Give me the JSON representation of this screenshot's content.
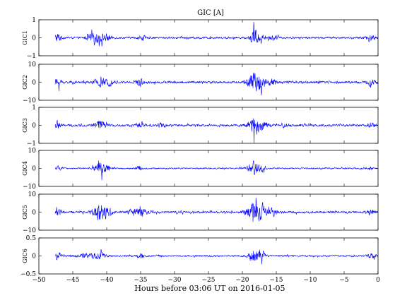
{
  "figure": {
    "title": "GIC [A]",
    "xlabel": "Hours before  03:06 UT on 2016-01-05"
  },
  "chart_data": {
    "type": "line",
    "title": "GIC [A]",
    "xlabel": "Hours before  03:06 UT on 2016-01-05",
    "xlim": [
      -50,
      0
    ],
    "x_ticks": [
      "−50",
      "−45",
      "−40",
      "−35",
      "−30",
      "−25",
      "−20",
      "−15",
      "−10",
      "−5",
      "0"
    ],
    "x_tick_values": [
      -50,
      -45,
      -40,
      -35,
      -30,
      -25,
      -20,
      -15,
      -10,
      -5,
      0
    ],
    "line_color": "#0000ff",
    "grid": false,
    "panels": [
      {
        "ylabel": "GIC1",
        "ylim": [
          -1,
          1
        ],
        "y_ticks": [
          "−1",
          "0",
          "1"
        ],
        "y_tick_values": [
          -1,
          0,
          1
        ],
        "data_start": -47.6,
        "base_amplitude": 0.07,
        "bursts": [
          {
            "x": -47.2,
            "width": 0.5,
            "amplitude": 0.3
          },
          {
            "x": -42.5,
            "width": 0.6,
            "amplitude": 0.18
          },
          {
            "x": -41.3,
            "width": 0.8,
            "amplitude": 0.32
          },
          {
            "x": -40.0,
            "width": 0.7,
            "amplitude": 0.2
          },
          {
            "x": -34.8,
            "width": 0.5,
            "amplitude": 0.16
          },
          {
            "x": -18.3,
            "width": 0.5,
            "amplitude": 0.55
          },
          {
            "x": -17.6,
            "width": 0.9,
            "amplitude": 0.2
          },
          {
            "x": -15.5,
            "width": 0.8,
            "amplitude": 0.12
          },
          {
            "x": -1.2,
            "width": 0.7,
            "amplitude": 0.2
          }
        ]
      },
      {
        "ylabel": "GIC2",
        "ylim": [
          -10,
          10
        ],
        "y_ticks": [
          "−10",
          "0",
          "10"
        ],
        "y_tick_values": [
          -10,
          0,
          10
        ],
        "data_start": -47.6,
        "base_amplitude": 0.9,
        "bursts": [
          {
            "x": -47.2,
            "width": 0.5,
            "amplitude": 2.5
          },
          {
            "x": -41.0,
            "width": 0.7,
            "amplitude": 3.5
          },
          {
            "x": -39.5,
            "width": 0.6,
            "amplitude": 1.8
          },
          {
            "x": -35.2,
            "width": 0.5,
            "amplitude": 2.5
          },
          {
            "x": -18.2,
            "width": 1.0,
            "amplitude": 6.5
          },
          {
            "x": -17.2,
            "width": 0.7,
            "amplitude": 3.0
          },
          {
            "x": -15.6,
            "width": 0.6,
            "amplitude": 1.8
          },
          {
            "x": -1.0,
            "width": 0.6,
            "amplitude": 1.8
          }
        ]
      },
      {
        "ylabel": "GIC3",
        "ylim": [
          -1,
          1
        ],
        "y_ticks": [
          "−1",
          "0",
          "1"
        ],
        "y_tick_values": [
          -1,
          0,
          1
        ],
        "data_start": -47.6,
        "base_amplitude": 0.08,
        "bursts": [
          {
            "x": -47.2,
            "width": 0.5,
            "amplitude": 0.28
          },
          {
            "x": -41.0,
            "width": 0.8,
            "amplitude": 0.3
          },
          {
            "x": -35.0,
            "width": 0.6,
            "amplitude": 0.2
          },
          {
            "x": -32.0,
            "width": 0.5,
            "amplitude": 0.12
          },
          {
            "x": -18.2,
            "width": 0.9,
            "amplitude": 0.6
          },
          {
            "x": -17.0,
            "width": 0.7,
            "amplitude": 0.22
          },
          {
            "x": -13.5,
            "width": 0.5,
            "amplitude": 0.1
          },
          {
            "x": -1.0,
            "width": 0.5,
            "amplitude": 0.12
          }
        ]
      },
      {
        "ylabel": "GIC4",
        "ylim": [
          -10,
          10
        ],
        "y_ticks": [
          "−10",
          "0",
          "10"
        ],
        "y_tick_values": [
          -10,
          0,
          10
        ],
        "data_start": -47.6,
        "base_amplitude": 0.5,
        "bursts": [
          {
            "x": -47.2,
            "width": 0.5,
            "amplitude": 1.2
          },
          {
            "x": -41.0,
            "width": 0.8,
            "amplitude": 4.0
          },
          {
            "x": -39.8,
            "width": 0.5,
            "amplitude": 2.0
          },
          {
            "x": -35.2,
            "width": 0.5,
            "amplitude": 1.4
          },
          {
            "x": -18.3,
            "width": 0.9,
            "amplitude": 4.2
          },
          {
            "x": -17.3,
            "width": 0.6,
            "amplitude": 1.8
          },
          {
            "x": -1.0,
            "width": 0.5,
            "amplitude": 0.8
          }
        ]
      },
      {
        "ylabel": "GIC5",
        "ylim": [
          -10,
          10
        ],
        "y_ticks": [
          "−10",
          "0",
          "10"
        ],
        "y_tick_values": [
          -10,
          0,
          10
        ],
        "data_start": -47.6,
        "base_amplitude": 0.8,
        "bursts": [
          {
            "x": -47.2,
            "width": 0.5,
            "amplitude": 2.4
          },
          {
            "x": -41.0,
            "width": 0.8,
            "amplitude": 6.5
          },
          {
            "x": -39.8,
            "width": 0.6,
            "amplitude": 3.0
          },
          {
            "x": -36.0,
            "width": 0.8,
            "amplitude": 2.2
          },
          {
            "x": -34.8,
            "width": 0.6,
            "amplitude": 2.8
          },
          {
            "x": -18.3,
            "width": 1.1,
            "amplitude": 6.5
          },
          {
            "x": -17.0,
            "width": 0.8,
            "amplitude": 3.5
          },
          {
            "x": -15.5,
            "width": 0.6,
            "amplitude": 2.5
          },
          {
            "x": -1.0,
            "width": 0.6,
            "amplitude": 1.6
          }
        ]
      },
      {
        "ylabel": "GIC6",
        "ylim": [
          -0.5,
          0.5
        ],
        "y_ticks": [
          "−0.5",
          "0",
          "0.5"
        ],
        "y_tick_values": [
          -0.5,
          0,
          0.5
        ],
        "data_start": -47.6,
        "base_amplitude": 0.03,
        "bursts": [
          {
            "x": -47.2,
            "width": 0.5,
            "amplitude": 0.12
          },
          {
            "x": -43.5,
            "width": 1.0,
            "amplitude": 0.08
          },
          {
            "x": -41.5,
            "width": 0.8,
            "amplitude": 0.12
          },
          {
            "x": -40.5,
            "width": 0.6,
            "amplitude": 0.1
          },
          {
            "x": -35.0,
            "width": 0.6,
            "amplitude": 0.07
          },
          {
            "x": -18.3,
            "width": 0.8,
            "amplitude": 0.22
          },
          {
            "x": -17.3,
            "width": 0.8,
            "amplitude": 0.1
          },
          {
            "x": -1.0,
            "width": 0.6,
            "amplitude": 0.08
          }
        ]
      }
    ]
  }
}
